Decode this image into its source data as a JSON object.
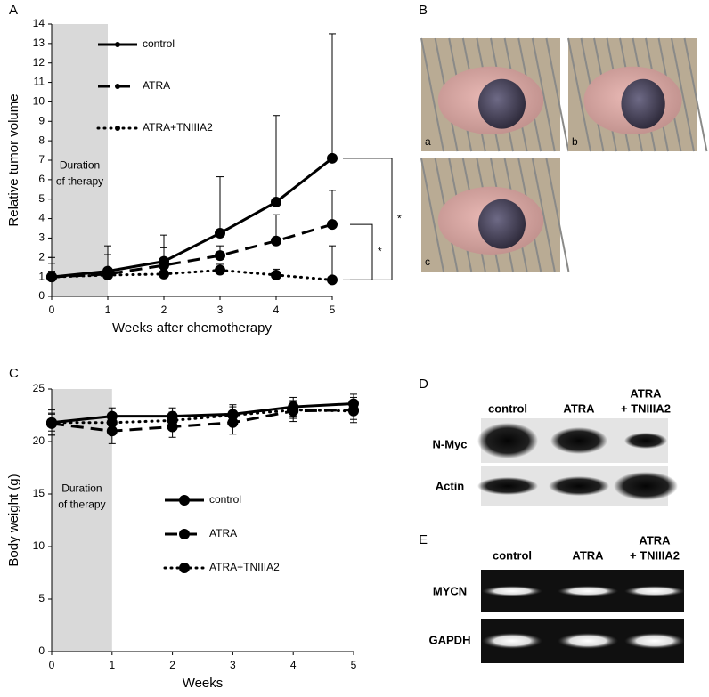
{
  "chart_data": [
    {
      "type": "line",
      "panel_label": "A",
      "x_label": "Weeks after chemotherapy",
      "y_label": "Relative tumor volume",
      "x": [
        0,
        1,
        2,
        3,
        4,
        5
      ],
      "xlim": [
        0,
        5
      ],
      "xticks": [
        0,
        1,
        2,
        3,
        4,
        5
      ],
      "ylim": [
        0,
        14
      ],
      "yticks": [
        0,
        1,
        2,
        3,
        4,
        5,
        6,
        7,
        8,
        9,
        10,
        11,
        12,
        13,
        14
      ],
      "legend": "upper left",
      "error_direction": "up",
      "shade_x": [
        0,
        1
      ],
      "annotation": [
        "Duration",
        "of therapy"
      ],
      "series": [
        {
          "name": "control",
          "color": "#000000",
          "line_style": "solid",
          "values": [
            1,
            1.3,
            1.8,
            3.25,
            4.85,
            7.1
          ],
          "errors": [
            1,
            1.3,
            1.35,
            2.9,
            4.45,
            6.4
          ]
        },
        {
          "name": "ATRA",
          "color": "#000000",
          "line_style": "dashed",
          "values": [
            1,
            1.15,
            1.6,
            2.1,
            2.85,
            3.7
          ],
          "errors": [
            0.7,
            1,
            0.9,
            0.5,
            1.35,
            1.75
          ]
        },
        {
          "name": "ATRA+TNIIIA2",
          "color": "#000000",
          "line_style": "dotted",
          "values": [
            1,
            1.1,
            1.15,
            1.35,
            1.1,
            0.85
          ],
          "errors": [
            0.3,
            0.3,
            0.25,
            0.3,
            0.3,
            1.75
          ]
        }
      ],
      "significance": [
        {
          "label": "*",
          "from": "control",
          "to": "ATRA+TNIIIA2"
        },
        {
          "label": "*",
          "from": "ATRA",
          "to": "ATRA+TNIIIA2"
        }
      ]
    },
    {
      "type": "line",
      "panel_label": "C",
      "x_label": "Weeks",
      "y_label": "Body weight (g)",
      "x": [
        0,
        1,
        2,
        3,
        4,
        5
      ],
      "xlim": [
        0,
        5
      ],
      "xticks": [
        0,
        1,
        2,
        3,
        4,
        5
      ],
      "ylim": [
        0,
        25
      ],
      "yticks": [
        0,
        5,
        10,
        15,
        20,
        25
      ],
      "legend": "center",
      "error_direction": "both",
      "shade_x": [
        0,
        1
      ],
      "annotation": [
        "Duration",
        "of therapy"
      ],
      "series": [
        {
          "name": "control",
          "color": "#000000",
          "line_style": "solid",
          "values": [
            21.8,
            22.4,
            22.4,
            22.6,
            23.3,
            23.6
          ],
          "errors": [
            1.2,
            0.8,
            0.8,
            0.9,
            0.9,
            0.9
          ]
        },
        {
          "name": "ATRA",
          "color": "#000000",
          "line_style": "dashed",
          "values": [
            21.7,
            21,
            21.4,
            21.8,
            22.9,
            23
          ],
          "errors": [
            1,
            1.2,
            1,
            1.1,
            1,
            1.2
          ]
        },
        {
          "name": "ATRA+TNIIIA2",
          "color": "#000000",
          "line_style": "dotted",
          "values": [
            21.8,
            21.8,
            22,
            22.5,
            23,
            22.9
          ],
          "errors": [
            0.8,
            0.8,
            0.8,
            0.8,
            0.8,
            0.8
          ]
        }
      ]
    }
  ],
  "photos": {
    "label": "B",
    "items": [
      "a",
      "b",
      "c"
    ]
  },
  "western_blot": {
    "label": "D",
    "columns": [
      [
        "control"
      ],
      [
        "ATRA"
      ],
      [
        "ATRA",
        "+ TNIIIA2"
      ]
    ],
    "rows": [
      "N-Myc",
      "Actin"
    ]
  },
  "rt_pcr": {
    "label": "E",
    "columns": [
      [
        "control"
      ],
      [
        "ATRA"
      ],
      [
        "ATRA",
        "+ TNIIIA2"
      ]
    ],
    "rows": [
      "MYCN",
      "GAPDH"
    ]
  }
}
